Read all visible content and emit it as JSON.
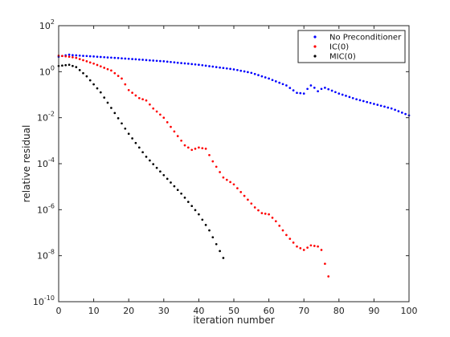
{
  "chart_data": {
    "type": "scatter",
    "xlabel": "iteration number",
    "ylabel": "relative residual",
    "xlim": [
      0,
      100
    ],
    "ylim": [
      -10,
      2
    ],
    "yscale": "log10",
    "x_ticks": [
      0,
      10,
      20,
      30,
      40,
      50,
      60,
      70,
      80,
      90,
      100
    ],
    "x_tick_labels": [
      "0",
      "10",
      "20",
      "30",
      "40",
      "50",
      "60",
      "70",
      "80",
      "90",
      "100"
    ],
    "y_ticks": [
      -10,
      -8,
      -6,
      -4,
      -2,
      0,
      2
    ],
    "y_tick_labels": [
      {
        "base": "10",
        "exp": "-10"
      },
      {
        "base": "10",
        "exp": "-8"
      },
      {
        "base": "10",
        "exp": "-6"
      },
      {
        "base": "10",
        "exp": "-4"
      },
      {
        "base": "10",
        "exp": "-2"
      },
      {
        "base": "10",
        "exp": "0"
      },
      {
        "base": "10",
        "exp": "2"
      }
    ],
    "grid": false,
    "legend_position": "top-right",
    "series": [
      {
        "name": "No Preconditioner",
        "color": "#0000ff",
        "x_range": [
          0,
          100
        ],
        "log10_residual_knots": [
          [
            0,
            0.65
          ],
          [
            3,
            0.74
          ],
          [
            4,
            0.72
          ],
          [
            10,
            0.66
          ],
          [
            20,
            0.56
          ],
          [
            30,
            0.45
          ],
          [
            40,
            0.3
          ],
          [
            50,
            0.1
          ],
          [
            55,
            -0.05
          ],
          [
            60,
            -0.3
          ],
          [
            65,
            -0.6
          ],
          [
            68,
            -0.92
          ],
          [
            70,
            -0.95
          ],
          [
            71,
            -0.75
          ],
          [
            72,
            -0.6
          ],
          [
            73,
            -0.7
          ],
          [
            74,
            -0.85
          ],
          [
            75,
            -0.75
          ],
          [
            76,
            -0.7
          ],
          [
            80,
            -0.95
          ],
          [
            85,
            -1.2
          ],
          [
            90,
            -1.4
          ],
          [
            95,
            -1.6
          ],
          [
            100,
            -1.9
          ]
        ]
      },
      {
        "name": "IC(0)",
        "color": "#ff0000",
        "x_range": [
          0,
          77
        ],
        "log10_residual_knots": [
          [
            0,
            0.7
          ],
          [
            3,
            0.65
          ],
          [
            5,
            0.6
          ],
          [
            10,
            0.35
          ],
          [
            15,
            0.05
          ],
          [
            18,
            -0.3
          ],
          [
            20,
            -0.8
          ],
          [
            23,
            -1.15
          ],
          [
            25,
            -1.25
          ],
          [
            27,
            -1.6
          ],
          [
            30,
            -2.0
          ],
          [
            33,
            -2.6
          ],
          [
            36,
            -3.2
          ],
          [
            38,
            -3.4
          ],
          [
            40,
            -3.3
          ],
          [
            42,
            -3.35
          ],
          [
            44,
            -3.9
          ],
          [
            47,
            -4.6
          ],
          [
            50,
            -4.9
          ],
          [
            53,
            -5.4
          ],
          [
            56,
            -5.9
          ],
          [
            58,
            -6.15
          ],
          [
            60,
            -6.2
          ],
          [
            62,
            -6.5
          ],
          [
            65,
            -7.1
          ],
          [
            68,
            -7.6
          ],
          [
            70,
            -7.75
          ],
          [
            72,
            -7.55
          ],
          [
            74,
            -7.6
          ],
          [
            75,
            -7.75
          ],
          [
            76,
            -8.35
          ],
          [
            77,
            -8.9
          ]
        ]
      },
      {
        "name": "MIC(0)",
        "color": "#000000",
        "x_range": [
          0,
          47
        ],
        "log10_residual_knots": [
          [
            0,
            0.25
          ],
          [
            3,
            0.3
          ],
          [
            5,
            0.2
          ],
          [
            8,
            -0.2
          ],
          [
            12,
            -0.9
          ],
          [
            16,
            -1.8
          ],
          [
            20,
            -2.7
          ],
          [
            25,
            -3.7
          ],
          [
            30,
            -4.5
          ],
          [
            35,
            -5.3
          ],
          [
            40,
            -6.2
          ],
          [
            43,
            -6.9
          ],
          [
            45,
            -7.5
          ],
          [
            47,
            -8.1
          ]
        ]
      }
    ]
  }
}
